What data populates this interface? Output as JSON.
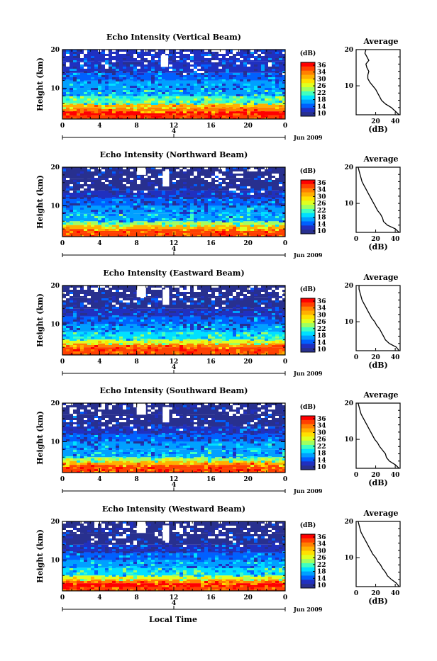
{
  "figure": {
    "date_label": "Jun 2009",
    "xlabel": "Local Time"
  },
  "colorbar": {
    "unit": "(dB)",
    "ticks": [
      "36",
      "34",
      "30",
      "26",
      "22",
      "18",
      "14",
      "10"
    ],
    "colors": [
      "#ff0000",
      "#ff4000",
      "#ff8000",
      "#ffb000",
      "#ffe000",
      "#e0ff20",
      "#a0ff60",
      "#40ffc0",
      "#00e0ff",
      "#00a0ff",
      "#0060ff",
      "#2030c0",
      "#28308f"
    ]
  },
  "chart_data": [
    {
      "type": "heatmap",
      "title": "Echo Intensity (Vertical Beam)",
      "ylabel": "Height (km)",
      "xlim": [
        0,
        24
      ],
      "ylim": [
        2,
        20
      ],
      "xticks": [
        "0",
        "4",
        "8",
        "12",
        "16",
        "20",
        "0"
      ],
      "yticks": [
        "20",
        "10"
      ],
      "zlim": [
        10,
        38
      ],
      "layers": [
        {
          "height_km": [
            2,
            3
          ],
          "dB": 36
        },
        {
          "height_km": [
            3,
            4
          ],
          "dB": 37
        },
        {
          "height_km": [
            4,
            5
          ],
          "dB": 34
        },
        {
          "height_km": [
            5,
            6
          ],
          "dB": 30
        },
        {
          "height_km": [
            6,
            8
          ],
          "dB": 22
        },
        {
          "height_km": [
            8,
            10
          ],
          "dB": 18
        },
        {
          "height_km": [
            10,
            12
          ],
          "dB": 16
        },
        {
          "height_km": [
            12,
            14
          ],
          "dB": 14
        },
        {
          "height_km": [
            14,
            17
          ],
          "dB": 13
        },
        {
          "height_km": [
            17,
            20
          ],
          "dB": 12
        }
      ],
      "gaps": [
        {
          "time_h": [
            10.6,
            11.4
          ],
          "height_km": [
            15.5,
            18.5
          ]
        }
      ],
      "average_profile": {
        "title": "Average",
        "xlabel": "(dB)",
        "xticks": [
          "20",
          "40"
        ],
        "yticks": [
          "20",
          "10"
        ],
        "xlim": [
          0,
          45
        ],
        "height_km": [
          2,
          3,
          4,
          5,
          6,
          7,
          8,
          9,
          10,
          11,
          12,
          13,
          14,
          15,
          16,
          17,
          18,
          19,
          20
        ],
        "dB": [
          44,
          40,
          36,
          30,
          26,
          24,
          22,
          20,
          17,
          14,
          12,
          12,
          13,
          11,
          10,
          13,
          11,
          9,
          10
        ]
      }
    },
    {
      "type": "heatmap",
      "title": "Echo Intensity (Northward Beam)",
      "ylabel": "Height (km)",
      "xlim": [
        0,
        24
      ],
      "ylim": [
        2,
        20
      ],
      "xticks": [
        "0",
        "4",
        "8",
        "12",
        "16",
        "20",
        "0"
      ],
      "yticks": [
        "20",
        "10"
      ],
      "zlim": [
        10,
        38
      ],
      "layers": [
        {
          "height_km": [
            2,
            3
          ],
          "dB": 35
        },
        {
          "height_km": [
            3,
            4
          ],
          "dB": 36
        },
        {
          "height_km": [
            4,
            5
          ],
          "dB": 30
        },
        {
          "height_km": [
            5,
            6
          ],
          "dB": 24
        },
        {
          "height_km": [
            6,
            8
          ],
          "dB": 18
        },
        {
          "height_km": [
            8,
            10
          ],
          "dB": 16
        },
        {
          "height_km": [
            10,
            12
          ],
          "dB": 14
        },
        {
          "height_km": [
            12,
            14
          ],
          "dB": 12
        },
        {
          "height_km": [
            14,
            17
          ],
          "dB": 11
        },
        {
          "height_km": [
            17,
            20
          ],
          "dB": 10
        }
      ],
      "gaps": [
        {
          "time_h": [
            8,
            9
          ],
          "height_km": [
            18,
            20
          ]
        },
        {
          "time_h": [
            10.8,
            11.5
          ],
          "height_km": [
            15,
            19
          ]
        }
      ],
      "average_profile": {
        "title": "Average",
        "xlabel": "(dB)",
        "xticks": [
          "0",
          "20",
          "40"
        ],
        "yticks": [
          "20",
          "10"
        ],
        "xlim": [
          0,
          45
        ],
        "height_km": [
          2,
          3,
          4,
          5,
          6,
          7,
          8,
          9,
          10,
          11,
          12,
          13,
          14,
          15,
          16,
          17,
          18,
          19,
          20
        ],
        "dB": [
          44,
          40,
          32,
          28,
          27,
          25,
          22,
          20,
          18,
          16,
          14,
          12,
          10,
          8,
          6,
          5,
          4,
          3,
          2
        ]
      }
    },
    {
      "type": "heatmap",
      "title": "Echo Intensity (Eastward Beam)",
      "ylabel": "Height (km)",
      "xlim": [
        0,
        24
      ],
      "ylim": [
        2,
        20
      ],
      "xticks": [
        "0",
        "4",
        "8",
        "12",
        "16",
        "20",
        "0"
      ],
      "yticks": [
        "20",
        "10"
      ],
      "zlim": [
        10,
        38
      ],
      "layers": [
        {
          "height_km": [
            2,
            3
          ],
          "dB": 35
        },
        {
          "height_km": [
            3,
            4
          ],
          "dB": 36
        },
        {
          "height_km": [
            4,
            5
          ],
          "dB": 34
        },
        {
          "height_km": [
            5,
            6
          ],
          "dB": 26
        },
        {
          "height_km": [
            6,
            8
          ],
          "dB": 20
        },
        {
          "height_km": [
            8,
            10
          ],
          "dB": 16
        },
        {
          "height_km": [
            10,
            12
          ],
          "dB": 14
        },
        {
          "height_km": [
            12,
            14
          ],
          "dB": 12
        },
        {
          "height_km": [
            14,
            17
          ],
          "dB": 11
        },
        {
          "height_km": [
            17,
            20
          ],
          "dB": 10
        }
      ],
      "gaps": [
        {
          "time_h": [
            8,
            9
          ],
          "height_km": [
            17,
            20
          ]
        },
        {
          "time_h": [
            10.8,
            11.5
          ],
          "height_km": [
            15,
            19
          ]
        }
      ],
      "average_profile": {
        "title": "Average",
        "xlabel": "(dB)",
        "xticks": [
          "0",
          "20",
          "40"
        ],
        "yticks": [
          "20",
          "10"
        ],
        "xlim": [
          0,
          45
        ],
        "height_km": [
          2,
          3,
          4,
          5,
          6,
          7,
          8,
          9,
          10,
          11,
          12,
          13,
          14,
          15,
          16,
          17,
          18,
          19,
          20
        ],
        "dB": [
          44,
          41,
          34,
          30,
          28,
          26,
          24,
          21,
          19,
          16,
          14,
          12,
          10,
          8,
          6,
          5,
          4,
          3,
          3
        ]
      }
    },
    {
      "type": "heatmap",
      "title": "Echo Intensity (Southward Beam)",
      "ylabel": "Height (km)",
      "xlim": [
        0,
        24
      ],
      "ylim": [
        2,
        20
      ],
      "xticks": [
        "0",
        "4",
        "8",
        "12",
        "16",
        "20",
        "0"
      ],
      "yticks": [
        "20",
        "10"
      ],
      "zlim": [
        10,
        38
      ],
      "layers": [
        {
          "height_km": [
            2,
            3
          ],
          "dB": 35
        },
        {
          "height_km": [
            3,
            4
          ],
          "dB": 36
        },
        {
          "height_km": [
            4,
            5
          ],
          "dB": 32
        },
        {
          "height_km": [
            5,
            6
          ],
          "dB": 24
        },
        {
          "height_km": [
            6,
            8
          ],
          "dB": 18
        },
        {
          "height_km": [
            8,
            10
          ],
          "dB": 16
        },
        {
          "height_km": [
            10,
            12
          ],
          "dB": 14
        },
        {
          "height_km": [
            12,
            14
          ],
          "dB": 12
        },
        {
          "height_km": [
            14,
            17
          ],
          "dB": 11
        },
        {
          "height_km": [
            17,
            20
          ],
          "dB": 10
        }
      ],
      "gaps": [
        {
          "time_h": [
            8,
            9
          ],
          "height_km": [
            17,
            20
          ]
        },
        {
          "time_h": [
            10.8,
            11.5
          ],
          "height_km": [
            15,
            19
          ]
        }
      ],
      "average_profile": {
        "title": "Average",
        "xlabel": "(dB)",
        "xticks": [
          "0",
          "20",
          "40"
        ],
        "yticks": [
          "20",
          "10"
        ],
        "xlim": [
          0,
          45
        ],
        "height_km": [
          2,
          3,
          4,
          5,
          6,
          7,
          8,
          9,
          10,
          11,
          12,
          13,
          14,
          15,
          16,
          17,
          18,
          19,
          20
        ],
        "dB": [
          44,
          40,
          34,
          31,
          30,
          27,
          24,
          22,
          19,
          17,
          15,
          13,
          11,
          9,
          7,
          5,
          4,
          3,
          2
        ]
      }
    },
    {
      "type": "heatmap",
      "title": "Echo Intensity (Westward Beam)",
      "ylabel": "Height (km)",
      "xlim": [
        0,
        24
      ],
      "ylim": [
        2,
        20
      ],
      "xticks": [
        "0",
        "4",
        "8",
        "12",
        "16",
        "20",
        "0"
      ],
      "yticks": [
        "20",
        "10"
      ],
      "zlim": [
        10,
        38
      ],
      "layers": [
        {
          "height_km": [
            2,
            3
          ],
          "dB": 35
        },
        {
          "height_km": [
            3,
            4
          ],
          "dB": 37
        },
        {
          "height_km": [
            4,
            5
          ],
          "dB": 34
        },
        {
          "height_km": [
            5,
            6
          ],
          "dB": 26
        },
        {
          "height_km": [
            6,
            8
          ],
          "dB": 20
        },
        {
          "height_km": [
            8,
            10
          ],
          "dB": 17
        },
        {
          "height_km": [
            10,
            12
          ],
          "dB": 15
        },
        {
          "height_km": [
            12,
            14
          ],
          "dB": 12
        },
        {
          "height_km": [
            14,
            17
          ],
          "dB": 11
        },
        {
          "height_km": [
            17,
            20
          ],
          "dB": 10
        }
      ],
      "gaps": [
        {
          "time_h": [
            8,
            9
          ],
          "height_km": [
            17,
            20
          ]
        },
        {
          "time_h": [
            10.8,
            11.5
          ],
          "height_km": [
            15,
            19
          ]
        }
      ],
      "average_profile": {
        "title": "Average",
        "xlabel": "(dB)",
        "xticks": [
          "0",
          "20",
          "40"
        ],
        "yticks": [
          "20",
          "10"
        ],
        "xlim": [
          0,
          45
        ],
        "height_km": [
          2,
          3,
          4,
          5,
          6,
          7,
          8,
          9,
          10,
          11,
          12,
          13,
          14,
          15,
          16,
          17,
          18,
          19,
          20
        ],
        "dB": [
          44,
          41,
          36,
          32,
          30,
          27,
          25,
          22,
          20,
          17,
          15,
          13,
          11,
          9,
          7,
          5,
          4,
          3,
          2
        ]
      }
    }
  ]
}
